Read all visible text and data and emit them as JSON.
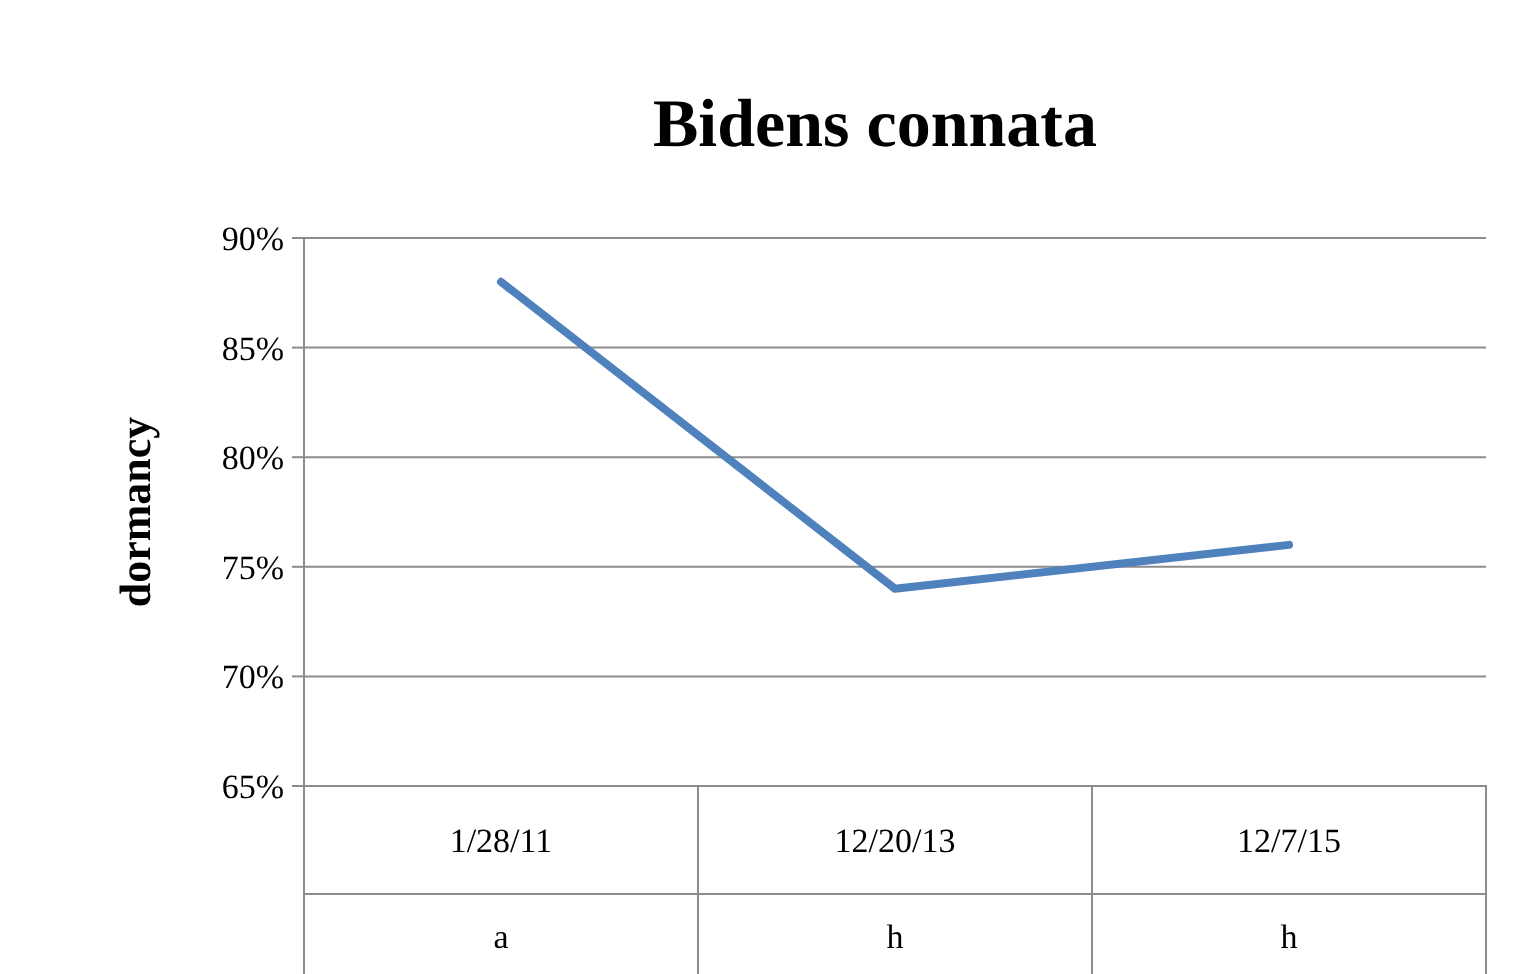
{
  "chart_data": {
    "type": "line",
    "title": "Bidens connata",
    "ylabel": "dormancy",
    "categories": [
      "1/28/11",
      "12/20/13",
      "12/7/15"
    ],
    "series": [
      {
        "color": "#4f81bd",
        "values": [
          88,
          74,
          76
        ]
      }
    ],
    "ylim": [
      65,
      90
    ],
    "yticks": [
      {
        "value": 65,
        "label": "65%"
      },
      {
        "value": 70,
        "label": "70%"
      },
      {
        "value": 75,
        "label": "75%"
      },
      {
        "value": 80,
        "label": "80%"
      },
      {
        "value": 85,
        "label": "85%"
      },
      {
        "value": 90,
        "label": "90%"
      }
    ],
    "grid": "y",
    "marker": "none",
    "line_style": "solid",
    "annotations": [
      "a",
      "h",
      "h"
    ]
  }
}
